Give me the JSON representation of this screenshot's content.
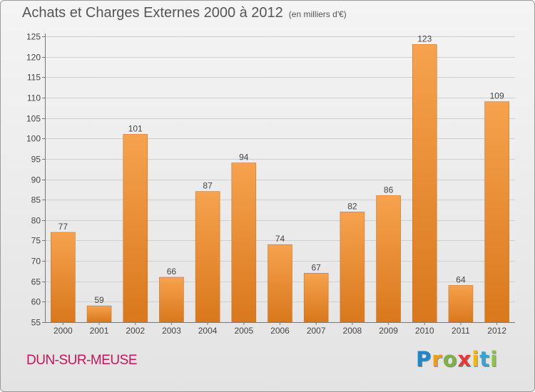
{
  "title": "Achats et Charges Externes 2000 à 2012",
  "subtitle": "(en milliers d'€)",
  "place": "DUN-SUR-MEUSE",
  "logo": {
    "letters": [
      "P",
      "r",
      "o",
      "x",
      "i",
      "t",
      "i"
    ],
    "colors": [
      "#1e88c8",
      "#f39c12",
      "#7cb342",
      "#e53935",
      "#f5b700",
      "#3aa0d8",
      "#8bc34a"
    ]
  },
  "colors": {
    "bar_top": "#f6a24e",
    "bar_bottom": "#d9781c",
    "bar_edge": "#c9762e",
    "grid": "#cfcfcf",
    "place": "#c2185b"
  },
  "chart_data": {
    "type": "bar",
    "categories": [
      "2000",
      "2001",
      "2002",
      "2003",
      "2004",
      "2005",
      "2006",
      "2007",
      "2008",
      "2009",
      "2010",
      "2011",
      "2012"
    ],
    "values": [
      77,
      59,
      101,
      66,
      87,
      94,
      74,
      67,
      82,
      86,
      123,
      64,
      109
    ],
    "title": "Achats et Charges Externes 2000 à 2012",
    "subtitle": "(en milliers d'€)",
    "ylim": [
      55,
      125
    ],
    "yticks": [
      55,
      60,
      65,
      70,
      75,
      80,
      85,
      90,
      95,
      100,
      105,
      110,
      115,
      120,
      125
    ],
    "grid": true
  }
}
